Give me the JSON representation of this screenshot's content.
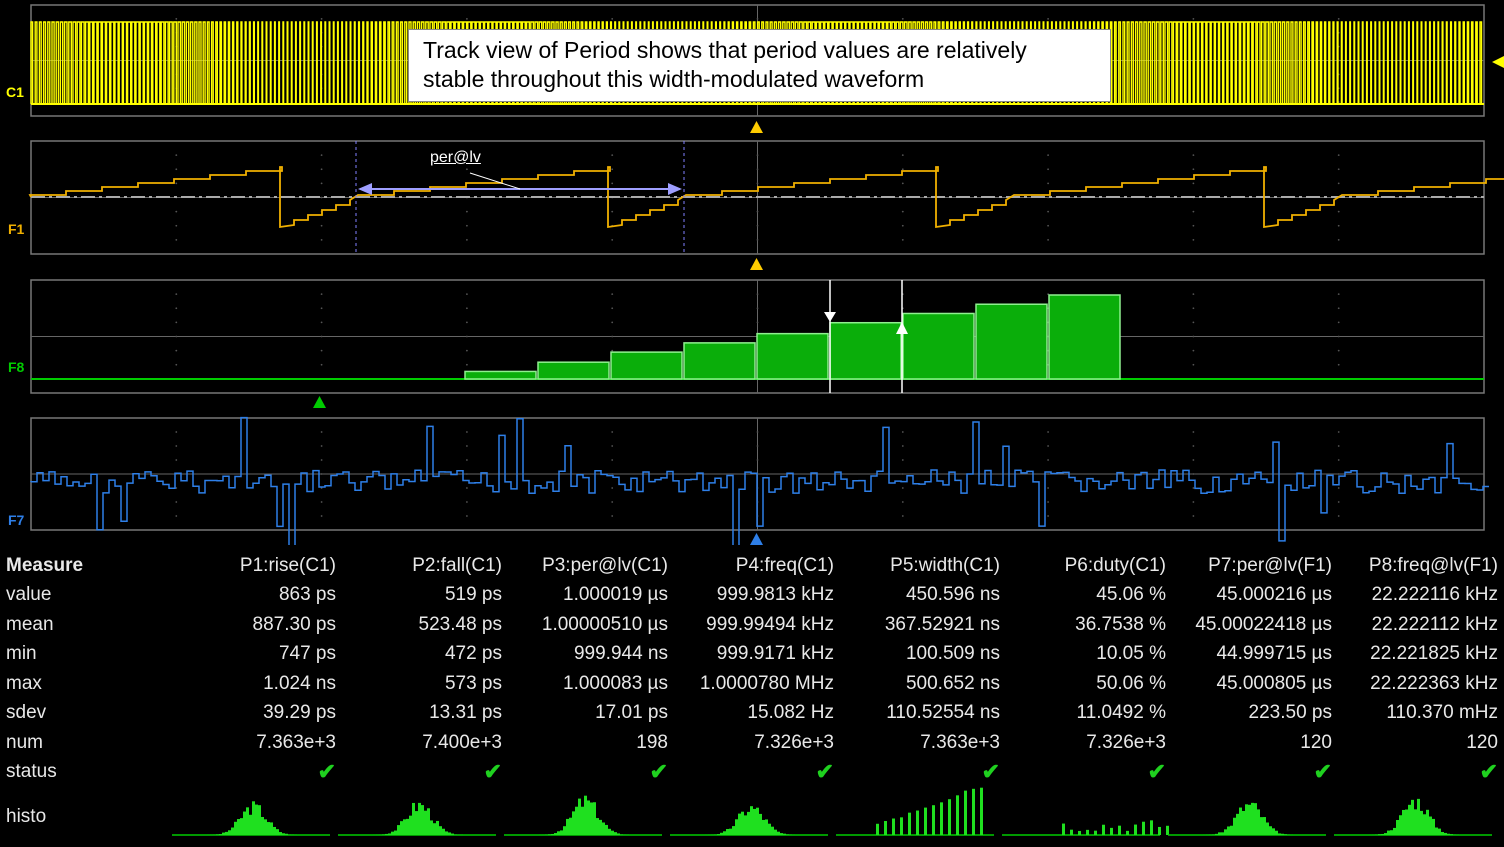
{
  "annotation": {
    "line1": "Track view of Period shows that period values are relatively",
    "line2": "stable throughout this width-modulated waveform"
  },
  "channels": {
    "c1": {
      "label": "C1",
      "color": "#ffff00"
    },
    "f1": {
      "label": "F1",
      "color": "#f0b000",
      "param_label": "per@lv"
    },
    "f8": {
      "label": "F8",
      "color": "#00cc00"
    },
    "f7": {
      "label": "F7",
      "color": "#2e7fe8"
    }
  },
  "histogram_bars": [
    0.09,
    0.2,
    0.32,
    0.43,
    0.54,
    0.67,
    0.78,
    0.89,
    1.0
  ],
  "measure": {
    "header_label": "Measure",
    "columns": [
      "P1:rise(C1)",
      "P2:fall(C1)",
      "P3:per@lv(C1)",
      "P4:freq(C1)",
      "P5:width(C1)",
      "P6:duty(C1)",
      "P7:per@lv(F1)",
      "P8:freq@lv(F1)"
    ],
    "rows": [
      {
        "label": "value",
        "cells": [
          "863 ps",
          "519 ps",
          "1.000019 µs",
          "999.9813 kHz",
          "450.596 ns",
          "45.06 %",
          "45.000216 µs",
          "22.222116 kHz"
        ]
      },
      {
        "label": "mean",
        "cells": [
          "887.30 ps",
          "523.48 ps",
          "1.00000510 µs",
          "999.99494 kHz",
          "367.52921 ns",
          "36.7538 %",
          "45.00022418 µs",
          "22.222112 kHz"
        ]
      },
      {
        "label": "min",
        "cells": [
          "747 ps",
          "472 ps",
          "999.944 ns",
          "999.9171 kHz",
          "100.509 ns",
          "10.05 %",
          "44.999715 µs",
          "22.221825 kHz"
        ]
      },
      {
        "label": "max",
        "cells": [
          "1.024 ns",
          "573 ps",
          "1.000083 µs",
          "1.0000780 MHz",
          "500.652 ns",
          "50.06 %",
          "45.000805 µs",
          "22.222363 kHz"
        ]
      },
      {
        "label": "sdev",
        "cells": [
          "39.29 ps",
          "13.31 ps",
          "17.01 ps",
          "15.082 Hz",
          "110.52554 ns",
          "11.0492 %",
          "223.50 ps",
          "110.370 mHz"
        ]
      },
      {
        "label": "num",
        "cells": [
          "7.363e+3",
          "7.400e+3",
          "198",
          "7.326e+3",
          "7.363e+3",
          "7.326e+3",
          "120",
          "120"
        ]
      }
    ],
    "status_label": "status",
    "status_mark": "✔",
    "histo_label": "histo"
  }
}
